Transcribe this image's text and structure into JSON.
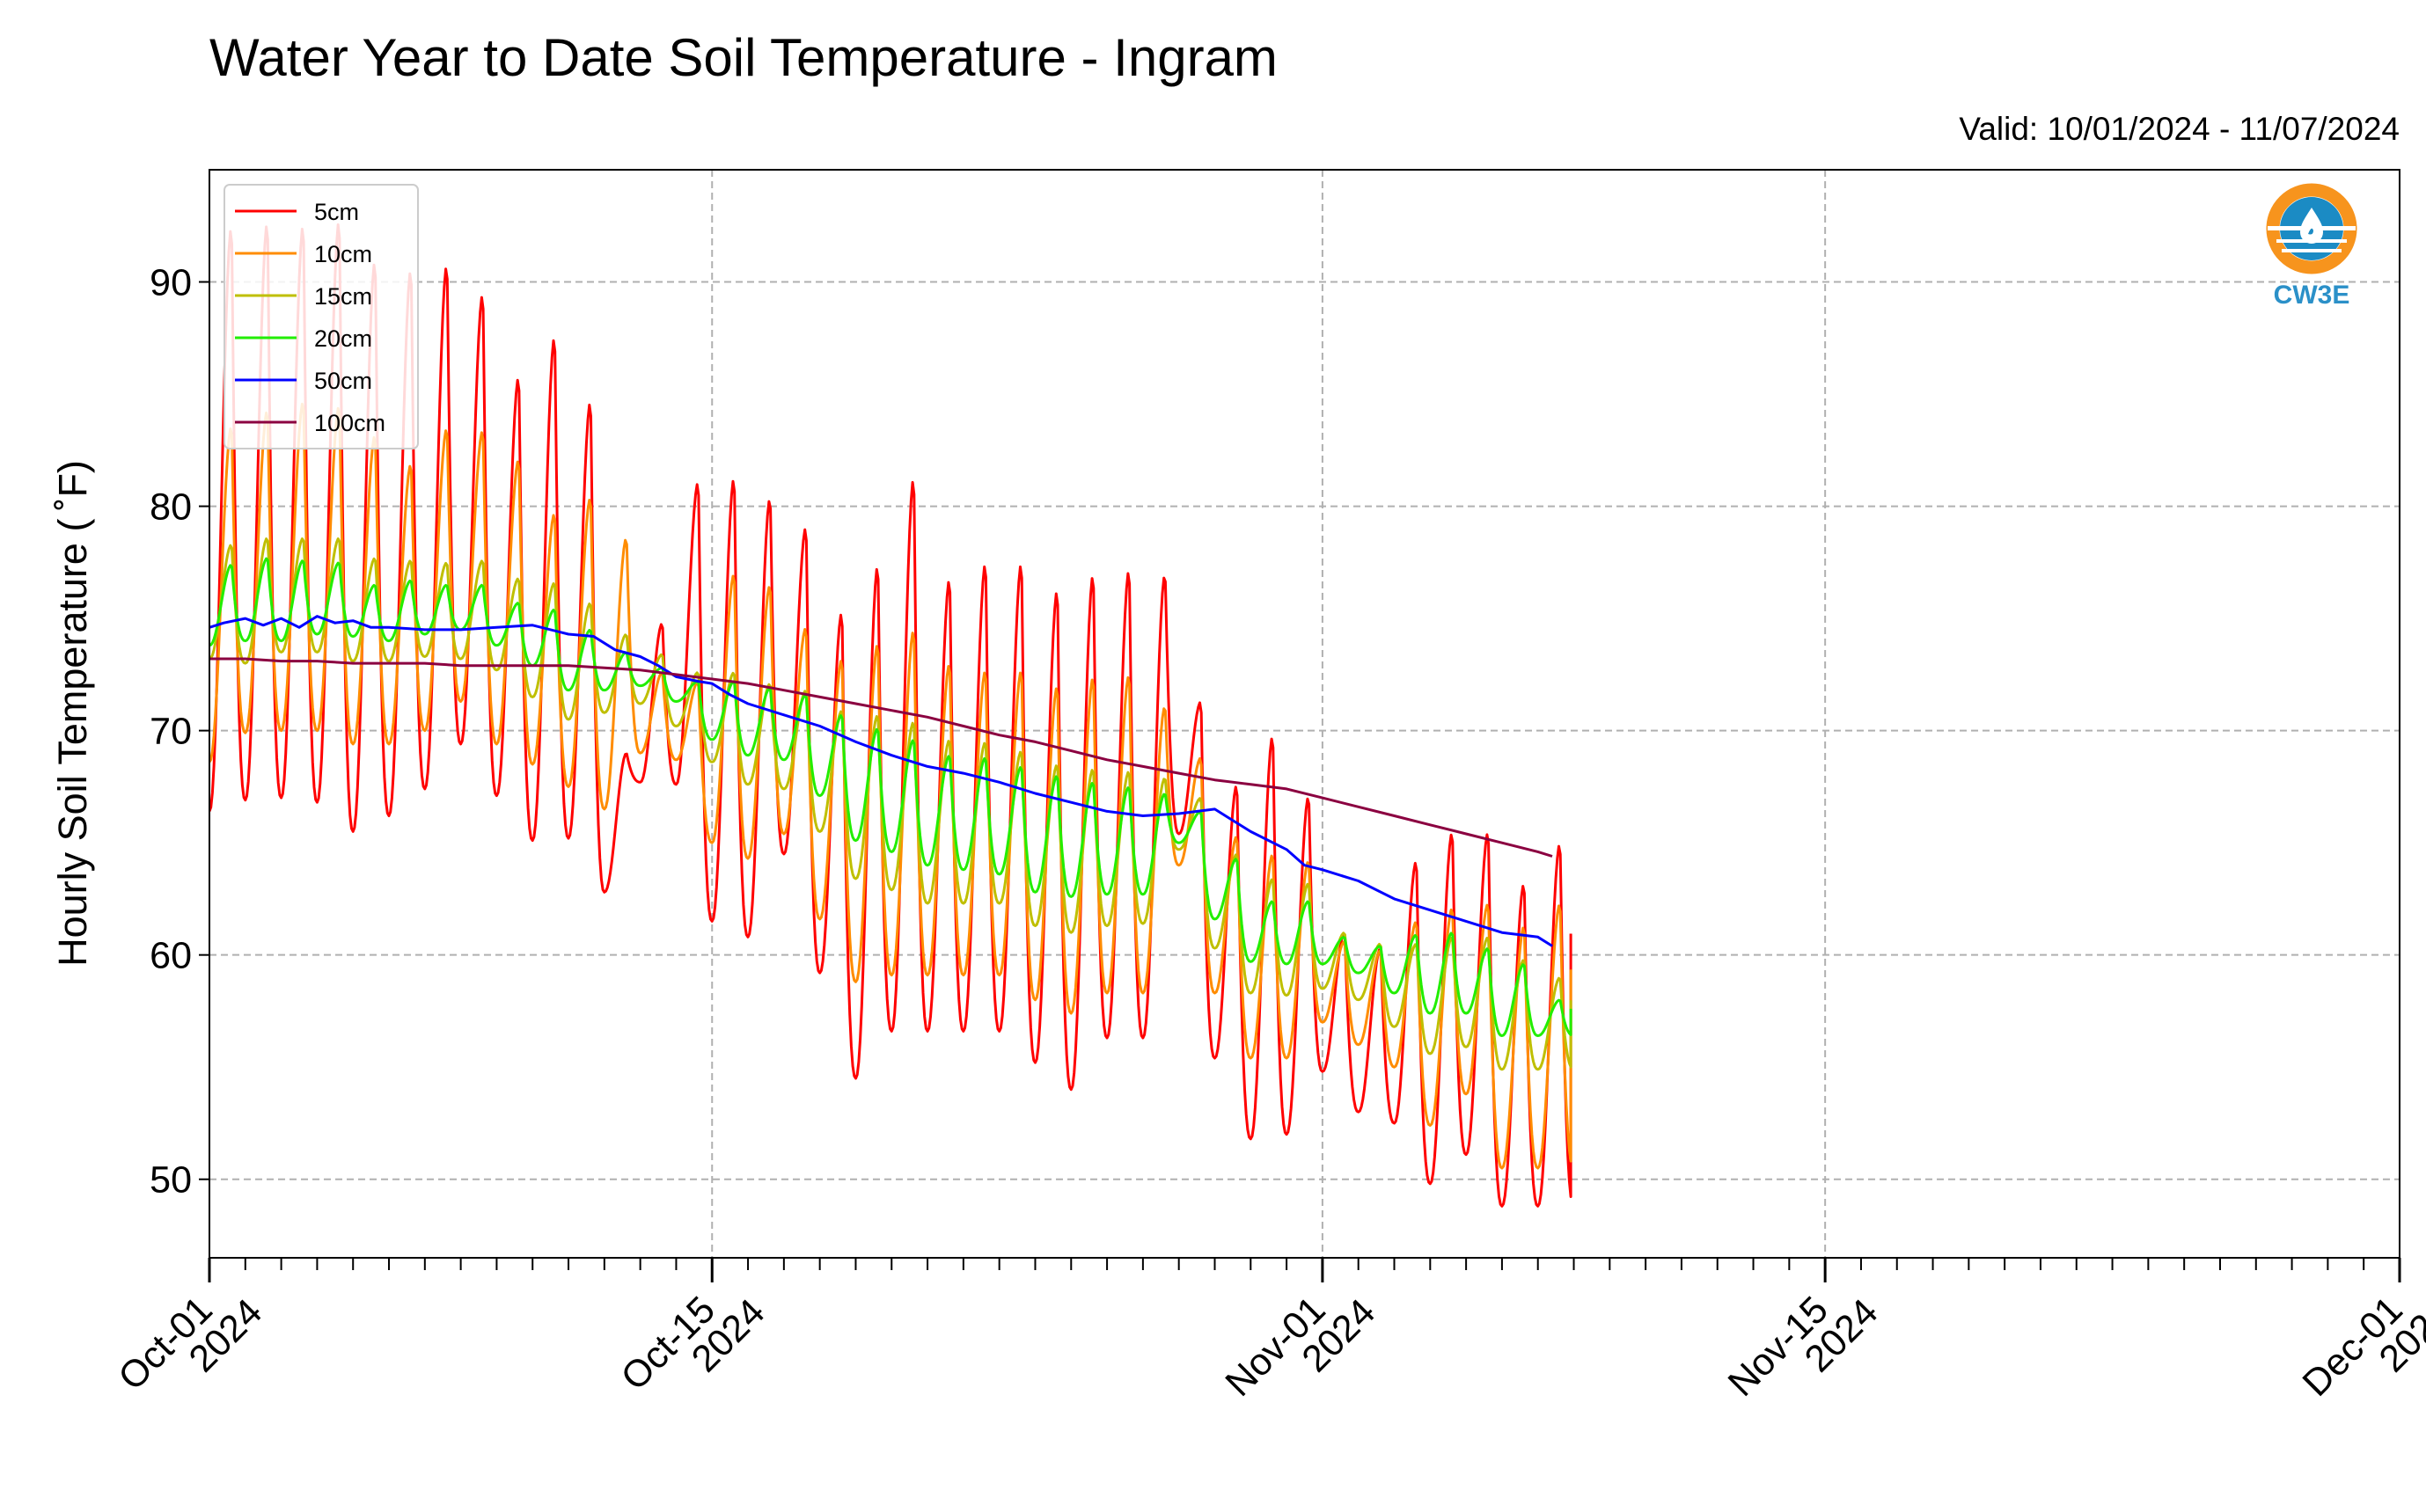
{
  "chart_data": {
    "type": "line",
    "title": "Water Year to Date Soil Temperature - Ingram",
    "subtitle": "Valid: 10/01/2024 - 11/07/2024",
    "xlabel": "",
    "ylabel": "Hourly Soil Temperature ($^\\circ$F)",
    "ylabel_display": "Hourly Soil Temperature ( ˚F)",
    "x_range": [
      "2024-10-01",
      "2024-12-01"
    ],
    "ylim": [
      46.5,
      95
    ],
    "y_ticks": [
      50,
      60,
      70,
      80,
      90
    ],
    "x_ticks": [
      {
        "date": "2024-10-01",
        "line1": "Oct-01",
        "line2": "2024"
      },
      {
        "date": "2024-10-15",
        "line1": "Oct-15",
        "line2": "2024"
      },
      {
        "date": "2024-11-01",
        "line1": "Nov-01",
        "line2": "2024"
      },
      {
        "date": "2024-11-15",
        "line1": "Nov-15",
        "line2": "2024"
      },
      {
        "date": "2024-12-01",
        "line1": "Dec-01",
        "line2": "2024"
      }
    ],
    "grid": true,
    "legend_position": "top-left",
    "data_end": "2024-11-07T22:00",
    "x_semantics": "day-of-record since 2024-10-01 00:00",
    "series": [
      {
        "name": "5cm",
        "color": "#ff0000",
        "style": "diurnal",
        "daily_max": [
          92.5,
          92.7,
          92.6,
          92.8,
          91.0,
          90.6,
          90.8,
          89.5,
          85.8,
          87.6,
          84.7,
          69.0,
          74.8,
          81.1,
          81.3,
          80.4,
          79.1,
          75.3,
          77.4,
          81.3,
          76.8,
          77.5,
          77.5,
          76.3,
          77.0,
          77.2,
          77.0,
          71.3,
          67.6,
          69.8,
          67.1,
          61.0,
          60.3,
          64.2,
          65.5,
          65.5,
          63.2,
          65.0
        ],
        "daily_min": [
          66.4,
          66.9,
          67.0,
          66.8,
          65.5,
          66.2,
          67.4,
          69.4,
          67.1,
          65.1,
          65.2,
          62.8,
          67.7,
          67.6,
          61.5,
          60.8,
          64.5,
          59.2,
          54.5,
          56.6,
          56.6,
          56.6,
          56.6,
          55.2,
          54.0,
          56.3,
          56.3,
          65.4,
          55.4,
          51.8,
          52.0,
          54.8,
          53.0,
          52.5,
          49.8,
          51.1,
          48.8,
          48.8
        ]
      },
      {
        "name": "10cm",
        "color": "#ff8c00",
        "style": "diurnal",
        "daily_max": [
          83.6,
          84.3,
          84.7,
          84.5,
          83.2,
          81.9,
          83.5,
          83.4,
          82.1,
          79.7,
          80.4,
          78.6,
          72.6,
          72.2,
          77.0,
          76.5,
          74.6,
          73.2,
          73.9,
          74.5,
          73.0,
          72.7,
          72.7,
          72.0,
          72.4,
          72.5,
          71.1,
          68.8,
          65.3,
          64.5,
          64.2,
          60.6,
          60.2,
          61.5,
          62.1,
          62.3,
          61.3,
          62.3
        ],
        "daily_min": [
          68.6,
          69.9,
          70.0,
          70.0,
          69.4,
          69.4,
          70.0,
          71.3,
          69.4,
          68.5,
          67.5,
          66.5,
          69.0,
          68.7,
          65.0,
          64.3,
          65.4,
          61.6,
          58.8,
          59.1,
          59.1,
          59.1,
          59.1,
          58.0,
          57.4,
          58.3,
          58.3,
          64.0,
          58.3,
          55.4,
          55.4,
          57.0,
          56.0,
          55.0,
          52.4,
          53.8,
          50.5,
          50.5
        ]
      },
      {
        "name": "15cm",
        "color": "#bfbf00",
        "style": "diurnal",
        "daily_max": [
          78.3,
          78.6,
          78.6,
          78.6,
          77.7,
          77.6,
          77.5,
          77.6,
          76.8,
          76.6,
          75.7,
          74.3,
          73.4,
          72.6,
          72.6,
          72.1,
          71.8,
          70.9,
          70.7,
          70.4,
          69.6,
          69.5,
          69.1,
          68.5,
          68.3,
          68.2,
          67.9,
          67.0,
          64.5,
          63.4,
          63.2,
          61.0,
          60.5,
          60.5,
          60.8,
          60.8,
          59.8,
          59.0
        ],
        "daily_min": [
          73.2,
          73.0,
          73.5,
          73.5,
          73.1,
          73.1,
          73.3,
          73.2,
          72.7,
          71.5,
          70.5,
          70.8,
          71.2,
          70.2,
          68.6,
          67.6,
          67.4,
          65.5,
          63.4,
          62.9,
          62.3,
          62.3,
          62.3,
          61.3,
          61.0,
          61.3,
          61.4,
          64.7,
          60.3,
          58.3,
          58.2,
          58.5,
          58.0,
          56.8,
          55.6,
          55.9,
          54.9,
          54.9
        ]
      },
      {
        "name": "20cm",
        "color": "#22ee00",
        "style": "diurnal",
        "daily_max": [
          77.4,
          77.7,
          77.6,
          77.5,
          76.5,
          76.7,
          76.5,
          76.5,
          75.7,
          75.4,
          74.5,
          73.5,
          72.8,
          72.2,
          72.2,
          71.9,
          71.6,
          70.7,
          70.1,
          69.6,
          68.9,
          68.8,
          68.4,
          68.0,
          67.7,
          67.5,
          67.2,
          66.4,
          64.3,
          62.4,
          62.4,
          60.8,
          60.4,
          60.9,
          61.0,
          60.3,
          59.6,
          58.0
        ],
        "daily_min": [
          73.8,
          74.0,
          74.0,
          74.3,
          74.2,
          74.0,
          74.3,
          74.5,
          73.8,
          72.9,
          71.8,
          71.8,
          72.0,
          71.3,
          69.6,
          68.9,
          68.7,
          67.1,
          65.1,
          64.6,
          64.0,
          63.8,
          63.6,
          62.8,
          62.6,
          62.7,
          62.7,
          65.0,
          61.6,
          59.7,
          59.6,
          59.6,
          59.2,
          58.3,
          57.4,
          57.4,
          56.4,
          56.4
        ]
      },
      {
        "name": "50cm",
        "color": "#0000ff",
        "style": "smooth",
        "x": [
          0,
          0.4,
          1,
          1.5,
          2,
          2.5,
          3,
          3.5,
          4,
          4.5,
          5,
          6,
          7,
          8,
          9,
          10,
          10.7,
          11.3,
          12,
          12.5,
          13,
          13.6,
          14,
          14.5,
          15,
          16,
          17,
          18,
          19,
          20,
          21,
          22,
          23,
          24,
          25,
          26,
          27,
          28,
          29,
          30,
          30.5,
          31,
          32,
          33,
          34,
          35,
          36,
          36.5,
          37,
          37.4
        ],
        "y": [
          74.6,
          74.8,
          75.0,
          74.7,
          75.0,
          74.6,
          75.1,
          74.8,
          74.9,
          74.6,
          74.6,
          74.5,
          74.5,
          74.6,
          74.7,
          74.3,
          74.2,
          73.6,
          73.3,
          72.9,
          72.4,
          72.2,
          72.1,
          71.6,
          71.2,
          70.7,
          70.2,
          69.5,
          68.9,
          68.4,
          68.1,
          67.7,
          67.2,
          66.8,
          66.4,
          66.2,
          66.3,
          66.5,
          65.5,
          64.7,
          64.0,
          63.8,
          63.3,
          62.5,
          62.0,
          61.5,
          61.0,
          60.9,
          60.8,
          60.4
        ]
      },
      {
        "name": "100cm",
        "color": "#8b0040",
        "style": "smooth",
        "x": [
          0,
          1,
          2,
          3,
          4,
          5,
          6,
          7,
          8,
          9,
          10,
          11,
          12,
          13,
          14,
          15,
          16,
          17,
          18,
          19,
          20,
          21,
          22,
          23,
          24,
          25,
          26,
          27,
          28,
          29,
          30,
          31,
          32,
          33,
          34,
          35,
          36,
          37,
          37.4
        ],
        "y": [
          73.2,
          73.2,
          73.1,
          73.1,
          73.0,
          73.0,
          73.0,
          72.9,
          72.9,
          72.9,
          72.9,
          72.8,
          72.7,
          72.5,
          72.3,
          72.1,
          71.8,
          71.5,
          71.2,
          70.9,
          70.6,
          70.2,
          69.8,
          69.5,
          69.1,
          68.7,
          68.4,
          68.1,
          67.8,
          67.6,
          67.4,
          67.0,
          66.6,
          66.2,
          65.8,
          65.4,
          65.0,
          64.6,
          64.4
        ]
      }
    ]
  },
  "logo": {
    "text": "CW3E",
    "ring_color": "#f7941d",
    "water_color": "#1b8bc4",
    "text_color": "#2b90c8"
  }
}
